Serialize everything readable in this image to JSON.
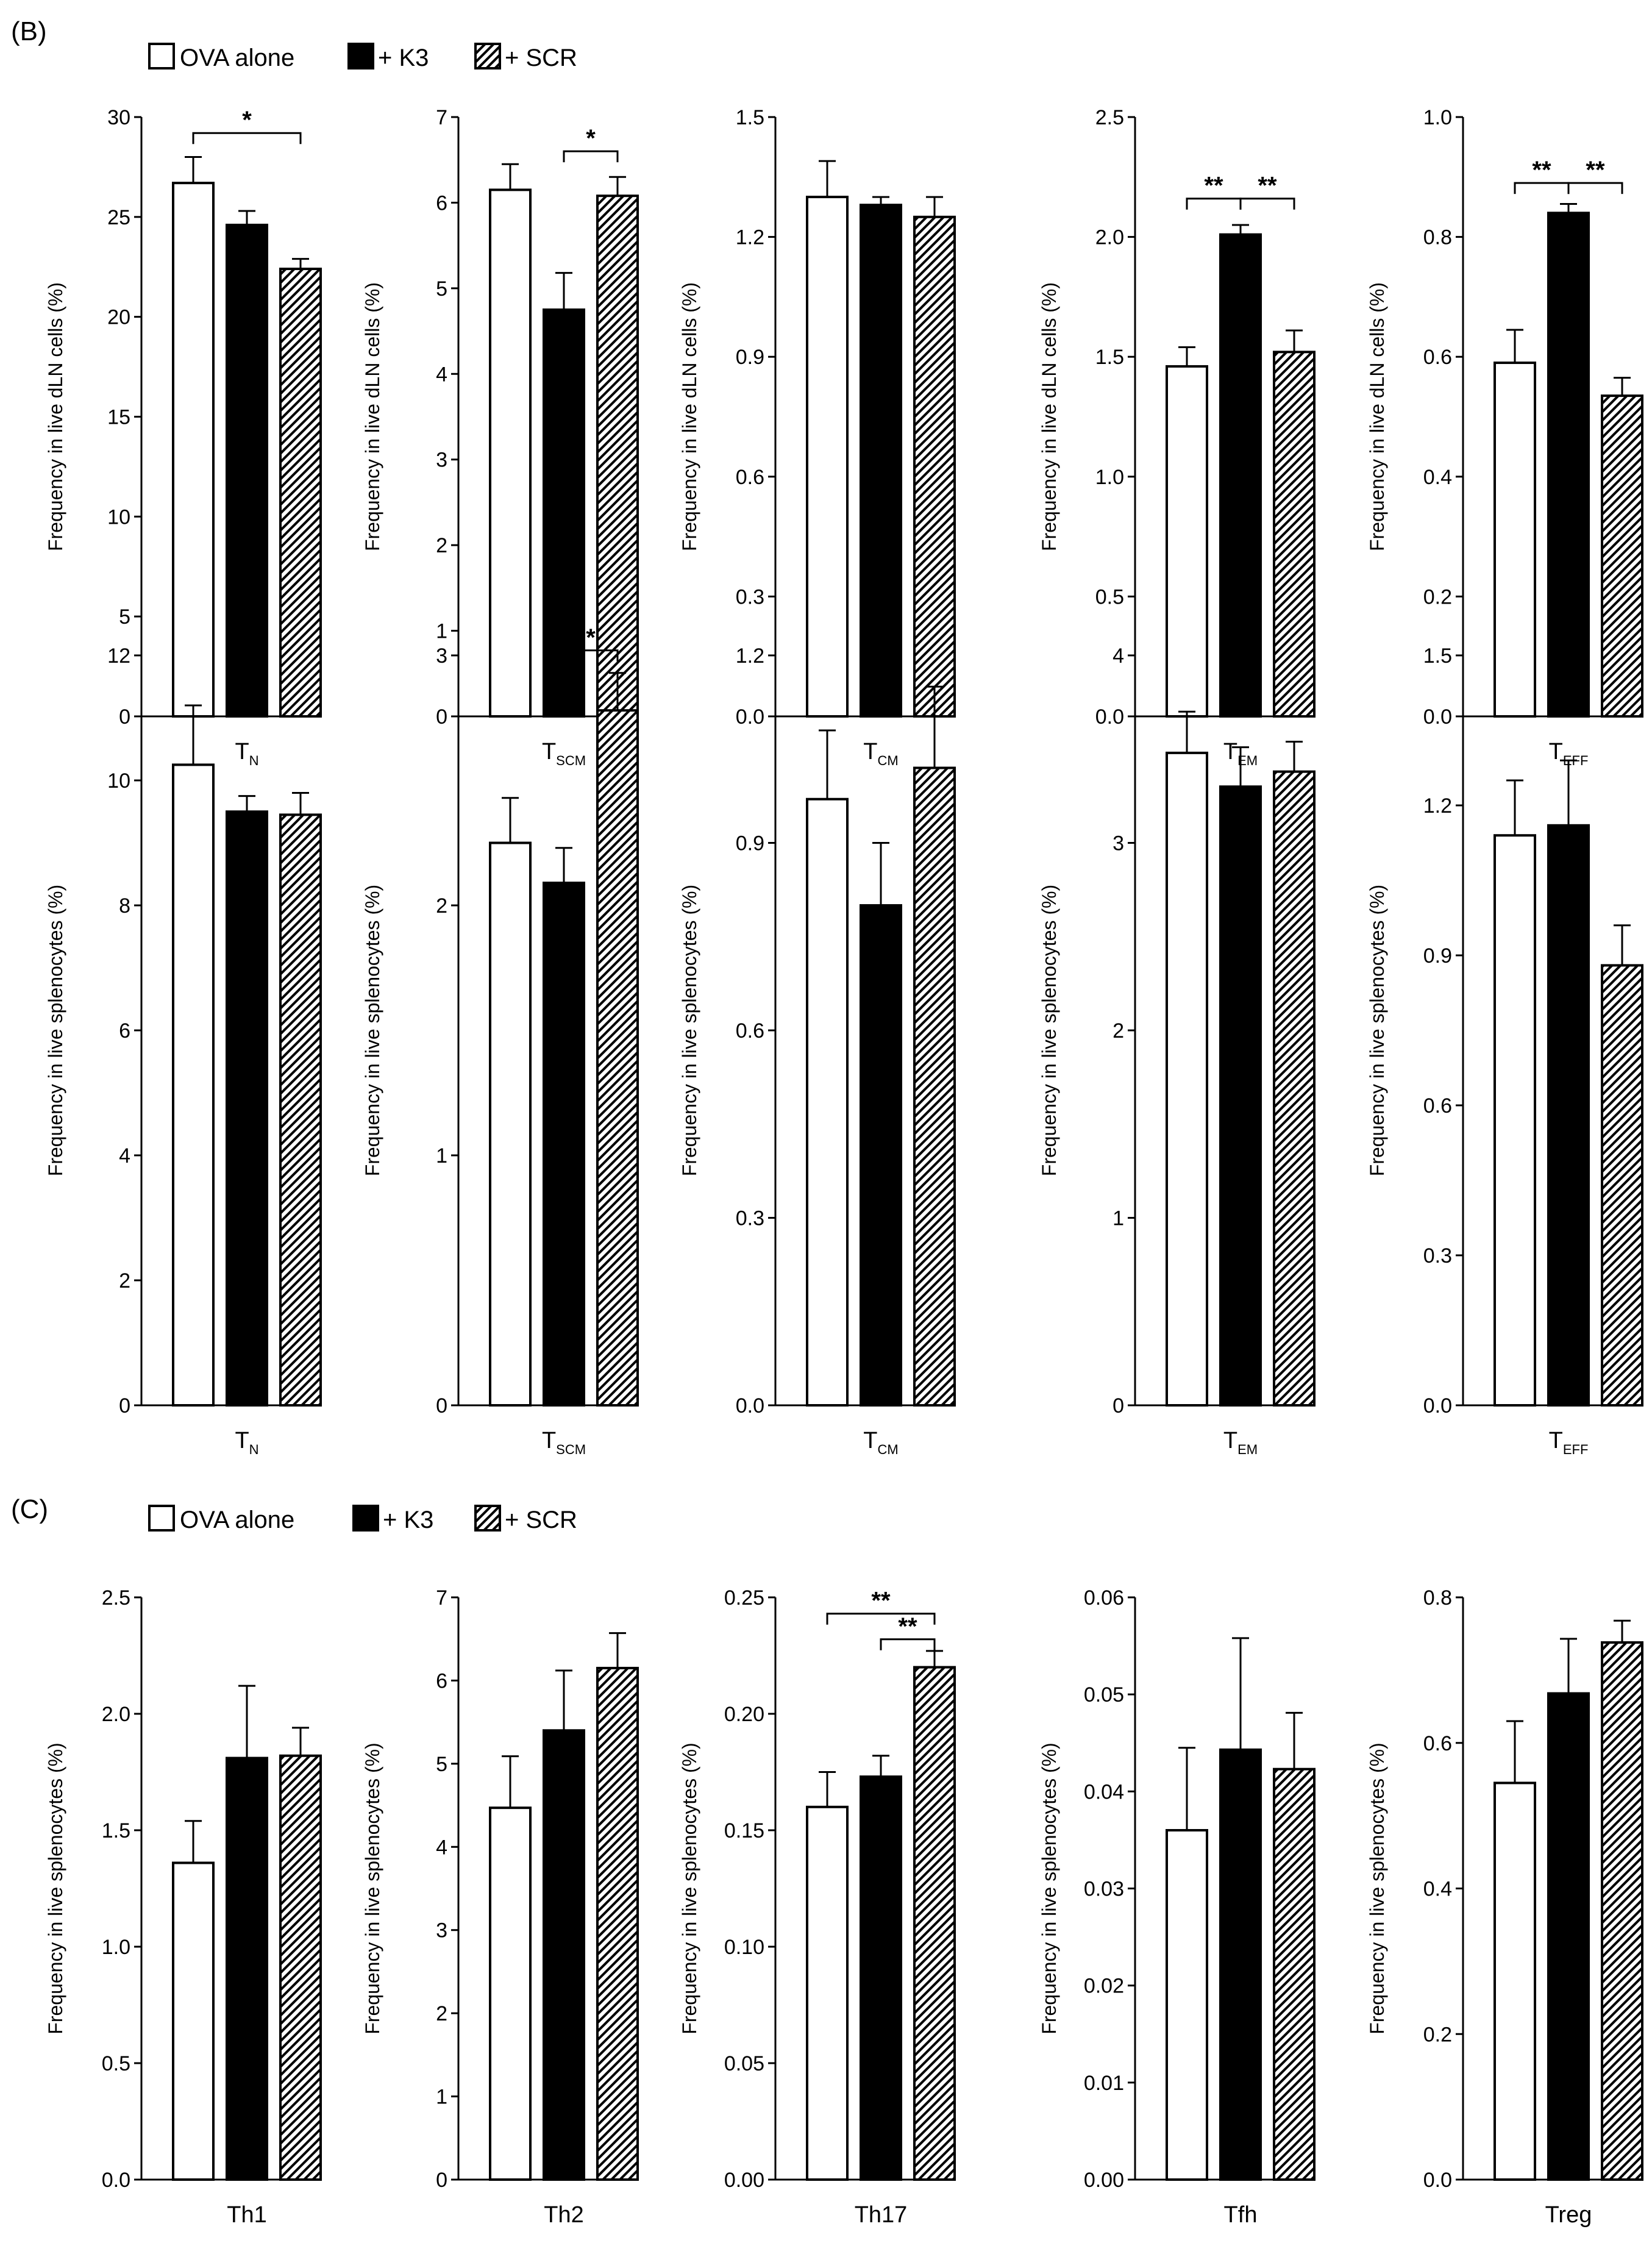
{
  "panel_labels": {
    "b": "(B)",
    "c": "(C)"
  },
  "legend": [
    {
      "label": "OVA alone",
      "style": "open"
    },
    {
      "label": "+ K3",
      "style": "filled"
    },
    {
      "label": "+ SCR",
      "style": "hatched"
    }
  ],
  "colors": {
    "ink": "#000000",
    "open_fill": "#ffffff",
    "filled_fill": "#000000",
    "hatch_stroke": "#000000"
  },
  "chart_data": [
    {
      "type": "bar",
      "section": "B",
      "row": 1,
      "ylabel": "Frequency in live dLN cells (%)",
      "category": {
        "main": "T",
        "sub": "N"
      },
      "ylim": [
        0,
        30
      ],
      "yticks": [
        "0",
        "5",
        "10",
        "15",
        "20",
        "25",
        "30"
      ],
      "series": [
        {
          "name": "OVA alone",
          "value": 26.7,
          "error": 1.3
        },
        {
          "name": "+ K3",
          "value": 24.6,
          "error": 0.7
        },
        {
          "name": "+ SCR",
          "value": 22.4,
          "error": 0.5
        }
      ],
      "significance": [
        {
          "label": "*",
          "from": 0,
          "to": 2,
          "y": 29.2
        }
      ]
    },
    {
      "type": "bar",
      "section": "B",
      "row": 1,
      "ylabel": "Frequency in live dLN cells (%)",
      "category": {
        "main": "T",
        "sub": "SCM"
      },
      "ylim": [
        0,
        7
      ],
      "yticks": [
        "0",
        "1",
        "2",
        "3",
        "4",
        "5",
        "6",
        "7"
      ],
      "series": [
        {
          "name": "OVA alone",
          "value": 6.15,
          "error": 0.3
        },
        {
          "name": "+ K3",
          "value": 4.75,
          "error": 0.43
        },
        {
          "name": "+ SCR",
          "value": 6.08,
          "error": 0.22
        }
      ],
      "significance": [
        {
          "label": "*",
          "from": 1,
          "to": 2,
          "y": 6.6
        }
      ]
    },
    {
      "type": "bar",
      "section": "B",
      "row": 1,
      "ylabel": "Frequency in live dLN cells (%)",
      "category": {
        "main": "T",
        "sub": "CM"
      },
      "ylim": [
        0,
        1.5
      ],
      "yticks": [
        "0.0",
        "0.3",
        "0.6",
        "0.9",
        "1.2",
        "1.5"
      ],
      "series": [
        {
          "name": "OVA alone",
          "value": 1.3,
          "error": 0.09
        },
        {
          "name": "+ K3",
          "value": 1.28,
          "error": 0.02
        },
        {
          "name": "+ SCR",
          "value": 1.25,
          "error": 0.05
        }
      ],
      "significance": []
    },
    {
      "type": "bar",
      "section": "B",
      "row": 1,
      "ylabel": "Frequency in live dLN cells (%)",
      "category": {
        "main": "T",
        "sub": "EM"
      },
      "ylim": [
        0,
        2.5
      ],
      "yticks": [
        "0.0",
        "0.5",
        "1.0",
        "1.5",
        "2.0",
        "2.5"
      ],
      "series": [
        {
          "name": "OVA alone",
          "value": 1.46,
          "error": 0.08
        },
        {
          "name": "+ K3",
          "value": 2.01,
          "error": 0.04
        },
        {
          "name": "+ SCR",
          "value": 1.52,
          "error": 0.09
        }
      ],
      "significance": [
        {
          "label": "**",
          "from": 0,
          "to": 1,
          "y": 2.16
        },
        {
          "label": "**",
          "from": 1,
          "to": 2,
          "y": 2.16
        }
      ]
    },
    {
      "type": "bar",
      "section": "B",
      "row": 1,
      "ylabel": "Frequency in live dLN cells (%)",
      "category": {
        "main": "T",
        "sub": "EFF"
      },
      "ylim": [
        0,
        1.0
      ],
      "yticks": [
        "0.0",
        "0.2",
        "0.4",
        "0.6",
        "0.8",
        "1.0"
      ],
      "series": [
        {
          "name": "OVA alone",
          "value": 0.59,
          "error": 0.055
        },
        {
          "name": "+ K3",
          "value": 0.84,
          "error": 0.015
        },
        {
          "name": "+ SCR",
          "value": 0.535,
          "error": 0.03
        }
      ],
      "significance": [
        {
          "label": "**",
          "from": 0,
          "to": 1,
          "y": 0.89
        },
        {
          "label": "**",
          "from": 1,
          "to": 2,
          "y": 0.89
        }
      ]
    },
    {
      "type": "bar",
      "section": "B",
      "row": 2,
      "ylabel": "Frequency in live splenocytes (%)",
      "category": {
        "main": "T",
        "sub": "N"
      },
      "ylim": [
        0,
        12
      ],
      "yticks": [
        "0",
        "2",
        "4",
        "6",
        "8",
        "10",
        "12"
      ],
      "series": [
        {
          "name": "OVA alone",
          "value": 10.25,
          "error": 0.95
        },
        {
          "name": "+ K3",
          "value": 9.5,
          "error": 0.25
        },
        {
          "name": "+ SCR",
          "value": 9.45,
          "error": 0.35
        }
      ],
      "significance": []
    },
    {
      "type": "bar",
      "section": "B",
      "row": 2,
      "ylabel": "Frequency in live splenocytes (%)",
      "category": {
        "main": "T",
        "sub": "SCM"
      },
      "ylim": [
        0,
        3
      ],
      "yticks": [
        "0",
        "1",
        "2",
        "3"
      ],
      "series": [
        {
          "name": "OVA alone",
          "value": 2.25,
          "error": 0.18
        },
        {
          "name": "+ K3",
          "value": 2.09,
          "error": 0.14
        },
        {
          "name": "+ SCR",
          "value": 2.78,
          "error": 0.15
        }
      ],
      "significance": [
        {
          "label": "*",
          "from": 1,
          "to": 2,
          "y": 3.02
        }
      ]
    },
    {
      "type": "bar",
      "section": "B",
      "row": 2,
      "ylabel": "Frequency in live splenocytes (%)",
      "category": {
        "main": "T",
        "sub": "CM"
      },
      "ylim": [
        0,
        1.2
      ],
      "yticks": [
        "0.0",
        "0.3",
        "0.6",
        "0.9",
        "1.2"
      ],
      "series": [
        {
          "name": "OVA alone",
          "value": 0.97,
          "error": 0.11
        },
        {
          "name": "+ K3",
          "value": 0.8,
          "error": 0.1
        },
        {
          "name": "+ SCR",
          "value": 1.02,
          "error": 0.13
        }
      ],
      "significance": []
    },
    {
      "type": "bar",
      "section": "B",
      "row": 2,
      "ylabel": "Frequency in live splenocytes (%)",
      "category": {
        "main": "T",
        "sub": "EM"
      },
      "ylim": [
        0,
        4
      ],
      "yticks": [
        "0",
        "1",
        "2",
        "3",
        "4"
      ],
      "series": [
        {
          "name": "OVA alone",
          "value": 3.48,
          "error": 0.22
        },
        {
          "name": "+ K3",
          "value": 3.3,
          "error": 0.21
        },
        {
          "name": "+ SCR",
          "value": 3.38,
          "error": 0.16
        }
      ],
      "significance": []
    },
    {
      "type": "bar",
      "section": "B",
      "row": 2,
      "ylabel": "Frequency in live splenocytes (%)",
      "category": {
        "main": "T",
        "sub": "EFF"
      },
      "ylim": [
        0,
        1.5
      ],
      "yticks": [
        "0.0",
        "0.3",
        "0.6",
        "0.9",
        "1.2",
        "1.5"
      ],
      "series": [
        {
          "name": "OVA alone",
          "value": 1.14,
          "error": 0.11
        },
        {
          "name": "+ K3",
          "value": 1.16,
          "error": 0.13
        },
        {
          "name": "+ SCR",
          "value": 0.88,
          "error": 0.08
        }
      ],
      "significance": []
    },
    {
      "type": "bar",
      "section": "C",
      "row": 3,
      "ylabel": "Frequency in live splenocytes (%)",
      "category": {
        "main": "Th1",
        "sub": ""
      },
      "ylim": [
        0,
        2.5
      ],
      "yticks": [
        "0.0",
        "0.5",
        "1.0",
        "1.5",
        "2.0",
        "2.5"
      ],
      "series": [
        {
          "name": "OVA alone",
          "value": 1.36,
          "error": 0.18
        },
        {
          "name": "+ K3",
          "value": 1.81,
          "error": 0.31
        },
        {
          "name": "+ SCR",
          "value": 1.82,
          "error": 0.12
        }
      ],
      "significance": []
    },
    {
      "type": "bar",
      "section": "C",
      "row": 3,
      "ylabel": "Frequency in live splenocytes (%)",
      "category": {
        "main": "Th2",
        "sub": ""
      },
      "ylim": [
        0,
        7
      ],
      "yticks": [
        "0",
        "1",
        "2",
        "3",
        "4",
        "5",
        "6",
        "7"
      ],
      "series": [
        {
          "name": "OVA alone",
          "value": 4.47,
          "error": 0.62
        },
        {
          "name": "+ K3",
          "value": 5.4,
          "error": 0.72
        },
        {
          "name": "+ SCR",
          "value": 6.15,
          "error": 0.42
        }
      ],
      "significance": []
    },
    {
      "type": "bar",
      "section": "C",
      "row": 3,
      "ylabel": "Frequency in live splenocytes (%)",
      "category": {
        "main": "Th17",
        "sub": ""
      },
      "ylim": [
        0,
        0.25
      ],
      "yticks": [
        "0.00",
        "0.05",
        "0.10",
        "0.15",
        "0.20",
        "0.25"
      ],
      "series": [
        {
          "name": "OVA alone",
          "value": 0.16,
          "error": 0.015
        },
        {
          "name": "+ K3",
          "value": 0.173,
          "error": 0.009
        },
        {
          "name": "+ SCR",
          "value": 0.22,
          "error": 0.007
        }
      ],
      "significance": [
        {
          "label": "**",
          "from": 0,
          "to": 2,
          "y": 0.243
        },
        {
          "label": "**",
          "from": 1,
          "to": 2,
          "y": 0.232
        }
      ]
    },
    {
      "type": "bar",
      "section": "C",
      "row": 3,
      "ylabel": "Frequency in live splenocytes (%)",
      "category": {
        "main": "Tfh",
        "sub": ""
      },
      "ylim": [
        0,
        0.06
      ],
      "yticks": [
        "0.00",
        "0.01",
        "0.02",
        "0.03",
        "0.04",
        "0.05",
        "0.06"
      ],
      "series": [
        {
          "name": "OVA alone",
          "value": 0.036,
          "error": 0.0085
        },
        {
          "name": "+ K3",
          "value": 0.0443,
          "error": 0.0115
        },
        {
          "name": "+ SCR",
          "value": 0.0423,
          "error": 0.0058
        }
      ],
      "significance": []
    },
    {
      "type": "bar",
      "section": "C",
      "row": 3,
      "ylabel": "Frequency in live splenocytes (%)",
      "category": {
        "main": "Treg",
        "sub": ""
      },
      "ylim": [
        0,
        0.8
      ],
      "yticks": [
        "0.0",
        "0.2",
        "0.4",
        "0.6",
        "0.8"
      ],
      "series": [
        {
          "name": "OVA alone",
          "value": 0.545,
          "error": 0.085
        },
        {
          "name": "+ K3",
          "value": 0.668,
          "error": 0.075
        },
        {
          "name": "+ SCR",
          "value": 0.738,
          "error": 0.03
        }
      ],
      "significance": []
    }
  ]
}
